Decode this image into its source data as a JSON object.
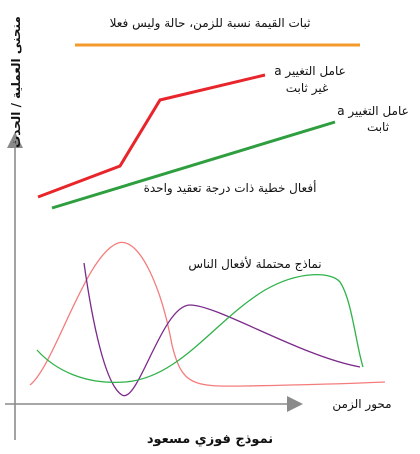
{
  "labels": {
    "y_axis": "منحنى العملية / الحدث",
    "x_axis": "محور الزمن",
    "orange_line": "ثبات القيمة نسبة للزمن، حالة وليس فعلا",
    "red_line_1": "عامل التغيير a",
    "red_line_2": "غير ثابت",
    "green_line_1": "عامل التغيير a",
    "green_line_2": "ثابت",
    "green_line_caption": "أفعال خطية ذات درجة تعقيد واحدة",
    "curves_caption": "نماذج محتملة لأفعال الناس",
    "footer_title": "نموذج فوزي مسعود"
  },
  "colors": {
    "orange": "#f39a2b",
    "red": "#e8252b",
    "green": "#2e9e3f",
    "pink_curve": "#f47c7c",
    "purple_curve": "#7b2a8a",
    "green_curve": "#2fb24a",
    "axis": "#8a8a8a",
    "footer_text": "#2c6fb5"
  }
}
